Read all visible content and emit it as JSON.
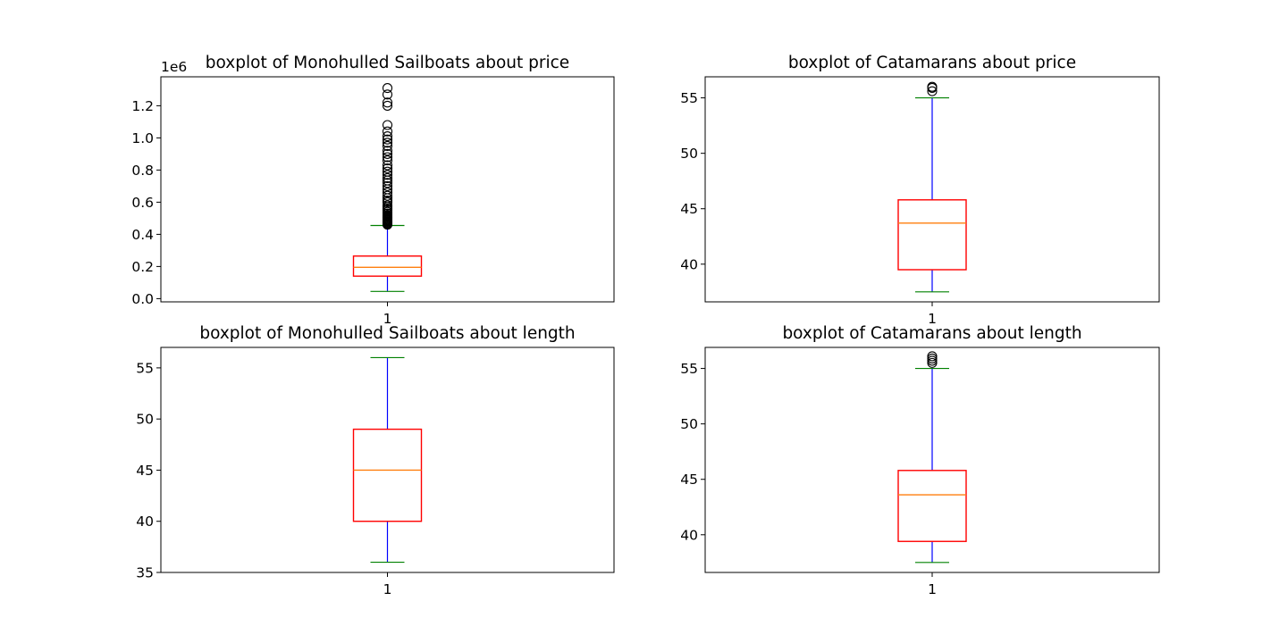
{
  "chart_data": [
    {
      "type": "boxplot",
      "title": "boxplot of Monohulled Sailboats about price",
      "categories": [
        "1"
      ],
      "y_offset_label": "1e6",
      "ylim": [
        -0.02,
        1.38
      ],
      "y_ticks": [
        0.0,
        0.2,
        0.4,
        0.6,
        0.8,
        1.0,
        1.2
      ],
      "y_tick_labels": [
        "0.0",
        "0.2",
        "0.4",
        "0.6",
        "0.8",
        "1.0",
        "1.2"
      ],
      "box": {
        "whisker_low": 0.045,
        "q1": 0.14,
        "median": 0.195,
        "q3": 0.265,
        "whisker_high": 0.455
      },
      "outliers": [
        0.46,
        0.465,
        0.47,
        0.475,
        0.48,
        0.485,
        0.49,
        0.495,
        0.5,
        0.505,
        0.51,
        0.515,
        0.52,
        0.53,
        0.54,
        0.55,
        0.56,
        0.57,
        0.58,
        0.6,
        0.61,
        0.625,
        0.64,
        0.66,
        0.68,
        0.7,
        0.72,
        0.735,
        0.75,
        0.77,
        0.79,
        0.81,
        0.83,
        0.86,
        0.88,
        0.9,
        0.92,
        0.95,
        0.97,
        0.99,
        1.01,
        1.04,
        1.08,
        1.2,
        1.22,
        1.27,
        1.31
      ]
    },
    {
      "type": "boxplot",
      "title": "boxplot of Catamarans about price",
      "categories": [
        "1"
      ],
      "ylim": [
        36.6,
        56.9
      ],
      "y_ticks": [
        40,
        45,
        50,
        55
      ],
      "y_tick_labels": [
        "40",
        "45",
        "50",
        "55"
      ],
      "box": {
        "whisker_low": 37.5,
        "q1": 39.5,
        "median": 43.7,
        "q3": 45.8,
        "whisker_high": 55.0
      },
      "outliers": [
        55.6,
        55.9,
        56.0
      ]
    },
    {
      "type": "boxplot",
      "title": "boxplot of Monohulled Sailboats about length",
      "categories": [
        "1"
      ],
      "ylim": [
        35.0,
        57.0
      ],
      "y_ticks": [
        35,
        40,
        45,
        50,
        55
      ],
      "y_tick_labels": [
        "35",
        "40",
        "45",
        "50",
        "55"
      ],
      "box": {
        "whisker_low": 36.0,
        "q1": 40.0,
        "median": 45.0,
        "q3": 49.0,
        "whisker_high": 56.0
      },
      "outliers": []
    },
    {
      "type": "boxplot",
      "title": "boxplot of Catamarans about length",
      "categories": [
        "1"
      ],
      "ylim": [
        36.6,
        56.9
      ],
      "y_ticks": [
        40,
        45,
        50,
        55
      ],
      "y_tick_labels": [
        "40",
        "45",
        "50",
        "55"
      ],
      "box": {
        "whisker_low": 37.5,
        "q1": 39.4,
        "median": 43.6,
        "q3": 45.8,
        "whisker_high": 55.0
      },
      "outliers": [
        55.5,
        55.7,
        55.9,
        56.1
      ]
    }
  ],
  "colors": {
    "box": "#ff0000",
    "whisker": "#0000ff",
    "cap": "#008000",
    "median": "#ff7f0e",
    "flier": "#000000",
    "axes": "#000000"
  }
}
